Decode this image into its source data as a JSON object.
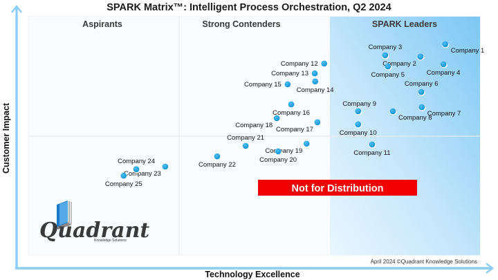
{
  "chart_data": {
    "type": "scatter",
    "title": "SPARK Matrix™: Intelligent Process Orchestration, Q2 2024",
    "xlabel": "Technology Excellence",
    "ylabel": "Customer Impact",
    "xlim": [
      0,
      100
    ],
    "ylim": [
      0,
      100
    ],
    "grid": true,
    "quadrants": [
      {
        "label": "Aspirants",
        "x_range": [
          0,
          33.3
        ]
      },
      {
        "label": "Strong Contenders",
        "x_range": [
          33.3,
          66.7
        ]
      },
      {
        "label": "SPARK Leaders",
        "x_range": [
          66.7,
          100
        ]
      }
    ],
    "horizontal_divider_y": 50,
    "points": [
      {
        "name": "Company 1",
        "x": 92.3,
        "y": 88.4,
        "label_pos": "below-right"
      },
      {
        "name": "Company 2",
        "x": 86.8,
        "y": 83.2,
        "label_pos": "below-left"
      },
      {
        "name": "Company 3",
        "x": 79.0,
        "y": 83.8,
        "label_pos": "above"
      },
      {
        "name": "Company 4",
        "x": 91.9,
        "y": 80.0,
        "label_pos": "below"
      },
      {
        "name": "Company 5",
        "x": 79.6,
        "y": 79.1,
        "label_pos": "below"
      },
      {
        "name": "Company 6",
        "x": 87.0,
        "y": 68.4,
        "label_pos": "above"
      },
      {
        "name": "Company 7",
        "x": 87.1,
        "y": 62.0,
        "label_pos": "below-right"
      },
      {
        "name": "Company 8",
        "x": 80.7,
        "y": 60.3,
        "label_pos": "below-right"
      },
      {
        "name": "Company 9",
        "x": 73.0,
        "y": 60.3,
        "label_pos": "above-right"
      },
      {
        "name": "Company 10",
        "x": 73.0,
        "y": 54.8,
        "label_pos": "below"
      },
      {
        "name": "Company 11",
        "x": 76.1,
        "y": 46.4,
        "label_pos": "below"
      },
      {
        "name": "Company 12",
        "x": 65.5,
        "y": 80.3,
        "label_pos": "left"
      },
      {
        "name": "Company 13",
        "x": 63.4,
        "y": 76.2,
        "label_pos": "left"
      },
      {
        "name": "Company 14",
        "x": 63.5,
        "y": 72.8,
        "label_pos": "below"
      },
      {
        "name": "Company 15",
        "x": 57.4,
        "y": 71.6,
        "label_pos": "left"
      },
      {
        "name": "Company 16",
        "x": 58.2,
        "y": 63.2,
        "label_pos": "below"
      },
      {
        "name": "Company 17",
        "x": 64.0,
        "y": 55.7,
        "label_pos": "below-left"
      },
      {
        "name": "Company 18",
        "x": 55.0,
        "y": 57.4,
        "label_pos": "below-left"
      },
      {
        "name": "Company 19",
        "x": 61.6,
        "y": 46.7,
        "label_pos": "below-left"
      },
      {
        "name": "Company 20",
        "x": 55.3,
        "y": 43.5,
        "label_pos": "below"
      },
      {
        "name": "Company 21",
        "x": 48.1,
        "y": 45.8,
        "label_pos": "above"
      },
      {
        "name": "Company 22",
        "x": 41.8,
        "y": 41.4,
        "label_pos": "below"
      },
      {
        "name": "Company 23",
        "x": 30.3,
        "y": 37.1,
        "label_pos": "below-left"
      },
      {
        "name": "Company 24",
        "x": 23.9,
        "y": 36.0,
        "label_pos": "above"
      },
      {
        "name": "Company 25",
        "x": 21.1,
        "y": 33.3,
        "label_pos": "below"
      }
    ],
    "annotations": [
      "Not for Distribution",
      "April 2024 ©Quadrant Knowledge Solutions"
    ]
  },
  "banner": "Not for Distribution",
  "copyright": "April 2024 ©Quadrant Knowledge Solutions",
  "logo": {
    "name": "Quadrant",
    "subtitle": "Knowledge Solutions"
  },
  "colors": {
    "axis": "#8fcdf5",
    "dot": "#1a9ee0",
    "leader_bg_start": "#e6f4fd",
    "leader_bg_end": "#86cbf6",
    "banner": "#f00000"
  }
}
